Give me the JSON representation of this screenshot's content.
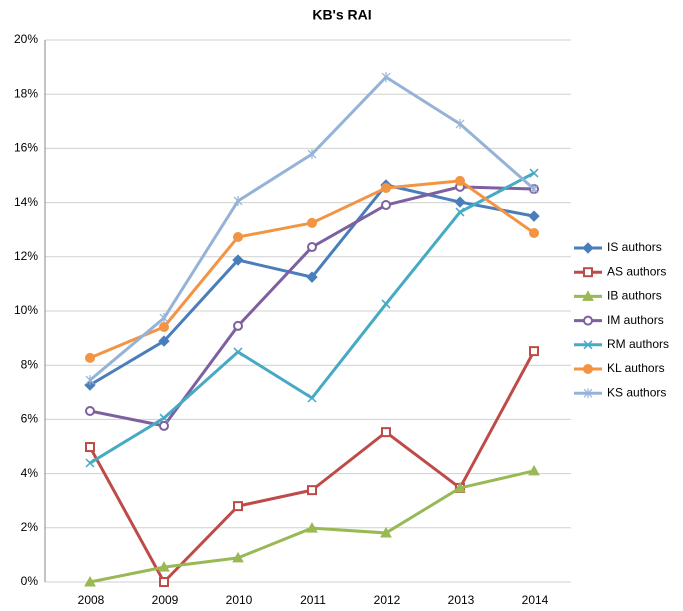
{
  "chart_data": {
    "type": "line",
    "title": "KB's RAI",
    "categories": [
      "2008",
      "2009",
      "2010",
      "2011",
      "2012",
      "2013",
      "2014"
    ],
    "ylim": [
      0,
      20
    ],
    "yticks": [
      {
        "value": 0,
        "label": "0%"
      },
      {
        "value": 2,
        "label": "2%"
      },
      {
        "value": 4,
        "label": "4%"
      },
      {
        "value": 6,
        "label": "6%"
      },
      {
        "value": 8,
        "label": "8%"
      },
      {
        "value": 10,
        "label": "10%"
      },
      {
        "value": 12,
        "label": "12%"
      },
      {
        "value": 14,
        "label": "14%"
      },
      {
        "value": 16,
        "label": "16%"
      },
      {
        "value": 18,
        "label": "18%"
      },
      {
        "value": 20,
        "label": "20%"
      }
    ],
    "grid": true,
    "legend": "right",
    "series": [
      {
        "name": "IS authors",
        "color": "#4a7ebb",
        "marker": "diamond",
        "values": [
          7.27,
          8.89,
          11.88,
          11.25,
          14.65,
          14.02,
          13.5
        ]
      },
      {
        "name": "AS authors",
        "color": "#be4b48",
        "marker": "open-square",
        "values": [
          4.98,
          0,
          2.8,
          3.39,
          5.53,
          3.47,
          8.52
        ]
      },
      {
        "name": "IB authors",
        "color": "#98b954",
        "marker": "triangle",
        "values": [
          0,
          0.55,
          0.89,
          1.99,
          1.81,
          3.47,
          4.1
        ]
      },
      {
        "name": "IM authors",
        "color": "#7d60a0",
        "marker": "open-circle",
        "values": [
          6.31,
          5.76,
          9.45,
          12.36,
          13.91,
          14.58,
          14.5
        ]
      },
      {
        "name": "RM authors",
        "color": "#46aac5",
        "marker": "x",
        "values": [
          4.39,
          6.05,
          8.49,
          6.79,
          10.26,
          13.65,
          15.09
        ]
      },
      {
        "name": "KL authors",
        "color": "#f39443",
        "marker": "circle",
        "values": [
          8.27,
          9.41,
          12.73,
          13.25,
          14.54,
          14.8,
          12.88
        ]
      },
      {
        "name": "KS authors",
        "color": "#95b3d7",
        "marker": "star",
        "values": [
          7.45,
          9.74,
          14.06,
          15.79,
          18.63,
          16.9,
          14.5
        ]
      }
    ]
  }
}
